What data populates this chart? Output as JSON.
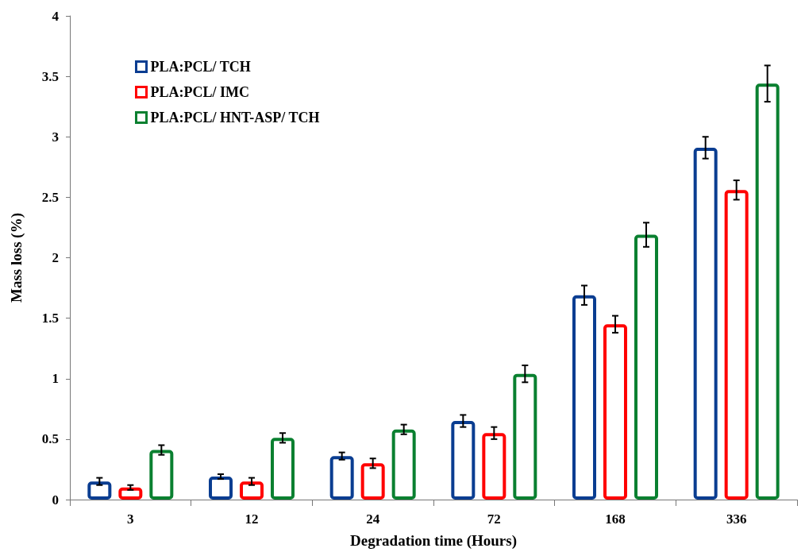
{
  "chart_data": {
    "type": "bar",
    "xlabel": "Degradation time (Hours)",
    "ylabel": "Mass loss (%)",
    "categories": [
      "3",
      "12",
      "24",
      "72",
      "168",
      "336"
    ],
    "series": [
      {
        "name": "PLA:PCL/ TCH",
        "color": "#0a3d91",
        "values": [
          0.15,
          0.19,
          0.36,
          0.65,
          1.69,
          2.91
        ],
        "errors": [
          0.03,
          0.02,
          0.03,
          0.05,
          0.08,
          0.09
        ]
      },
      {
        "name": "PLA:PCL/ IMC",
        "color": "#ff0000",
        "values": [
          0.1,
          0.15,
          0.3,
          0.55,
          1.45,
          2.56
        ],
        "errors": [
          0.02,
          0.03,
          0.04,
          0.05,
          0.07,
          0.08
        ]
      },
      {
        "name": "PLA:PCL/ HNT-ASP/ TCH",
        "color": "#0a8030",
        "values": [
          0.41,
          0.51,
          0.58,
          1.04,
          2.19,
          3.44
        ],
        "errors": [
          0.04,
          0.04,
          0.04,
          0.07,
          0.1,
          0.15
        ]
      }
    ],
    "ylim": [
      0,
      4
    ],
    "yticks": [
      0,
      0.5,
      1,
      1.5,
      2,
      2.5,
      3,
      3.5,
      4
    ],
    "grid": false,
    "legend": "top left"
  }
}
